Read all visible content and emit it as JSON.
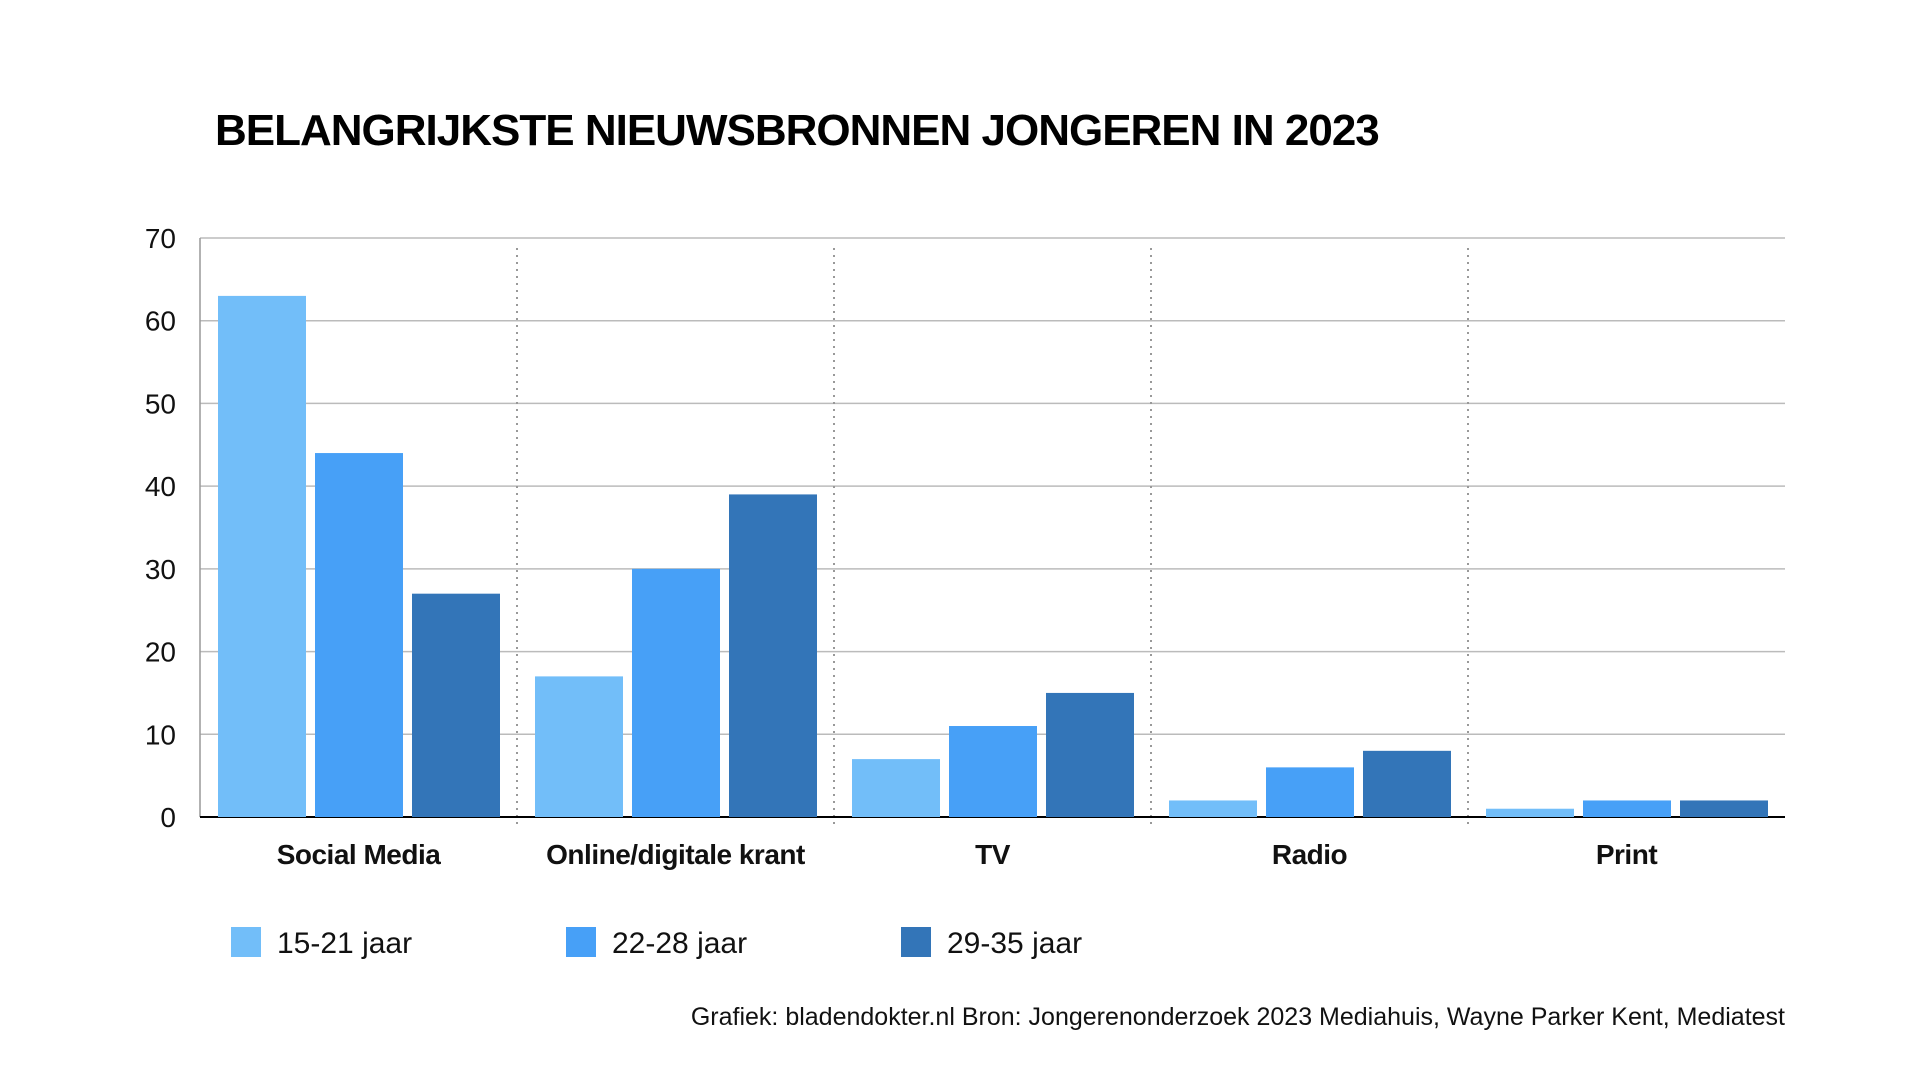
{
  "chart_data": {
    "type": "bar",
    "title": "BELANGRIJKSTE NIEUWSBRONNEN JONGEREN IN 2023",
    "categories": [
      "Social Media",
      "Online/digitale krant",
      "TV",
      "Radio",
      "Print"
    ],
    "series": [
      {
        "name": "15-21 jaar",
        "color": "#72bef9",
        "values": [
          63,
          17,
          7,
          2,
          1
        ]
      },
      {
        "name": "22-28 jaar",
        "color": "#47a0f7",
        "values": [
          44,
          30,
          11,
          6,
          2
        ]
      },
      {
        "name": "29-35 jaar",
        "color": "#3375b8",
        "values": [
          27,
          39,
          15,
          8,
          2
        ]
      }
    ],
    "ylim": [
      0,
      70
    ],
    "yticks": [
      "0",
      "10",
      "20",
      "30",
      "40",
      "50",
      "60",
      "70"
    ],
    "grid": true,
    "legend": "bottom-left",
    "xlabel": "",
    "ylabel": ""
  },
  "source": "Grafiek: bladendokter.nl  Bron: Jongerenonderzoek 2023 Mediahuis, Wayne Parker Kent, Mediatest"
}
